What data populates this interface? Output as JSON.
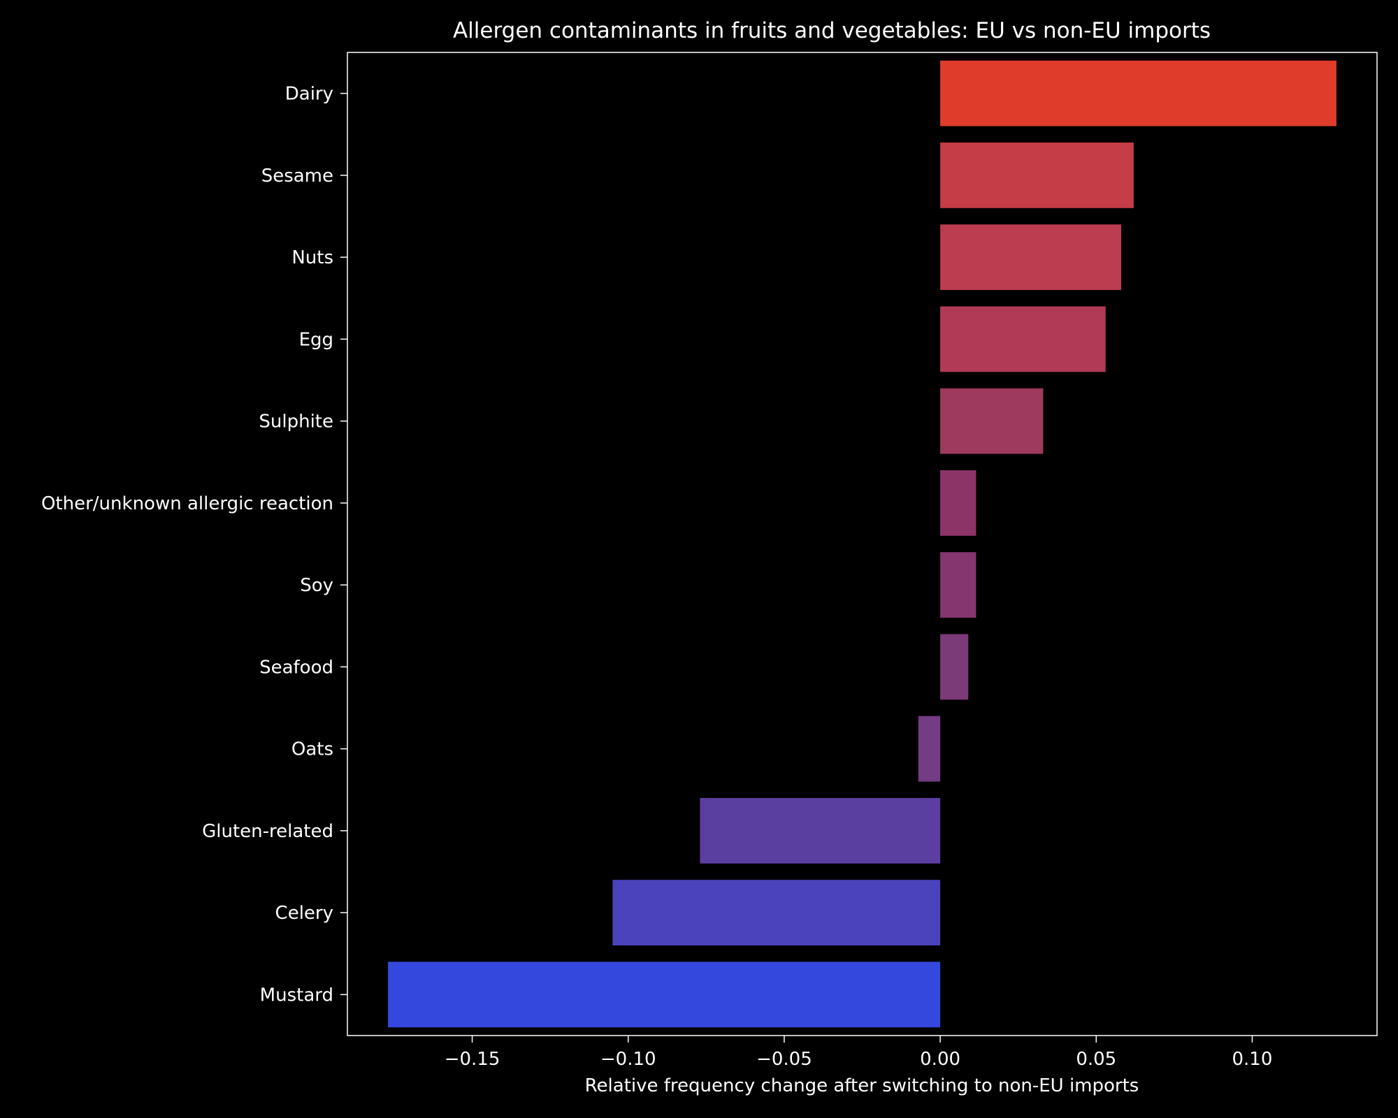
{
  "chart_data": {
    "type": "bar",
    "orientation": "horizontal",
    "title": "Allergen contaminants in fruits and vegetables: EU vs non-EU imports",
    "xlabel": "Relative frequency change after switching to non-EU imports",
    "ylabel": "",
    "xlim": [
      -0.19,
      0.14
    ],
    "xticks": [
      -0.15,
      -0.1,
      -0.05,
      0.0,
      0.05,
      0.1
    ],
    "xtick_labels": [
      "−0.15",
      "−0.10",
      "−0.05",
      "0.00",
      "0.05",
      "0.10"
    ],
    "grid": false,
    "background": "#000000",
    "categories": [
      "Dairy",
      "Sesame",
      "Nuts",
      "Egg",
      "Sulphite",
      "Other/unknown allergic reaction",
      "Soy",
      "Seafood",
      "Oats",
      "Gluten-related",
      "Celery",
      "Mustard"
    ],
    "values": [
      0.127,
      0.062,
      0.058,
      0.053,
      0.033,
      0.0115,
      0.0115,
      0.009,
      -0.007,
      -0.077,
      -0.105,
      -0.177
    ],
    "colors": [
      "#e03c2b",
      "#c53d46",
      "#bb3d4f",
      "#b13b57",
      "#9e3a5d",
      "#8c3468",
      "#86366f",
      "#7b3a78",
      "#743c84",
      "#5a3ea0",
      "#4b43bb",
      "#3548dd"
    ]
  }
}
